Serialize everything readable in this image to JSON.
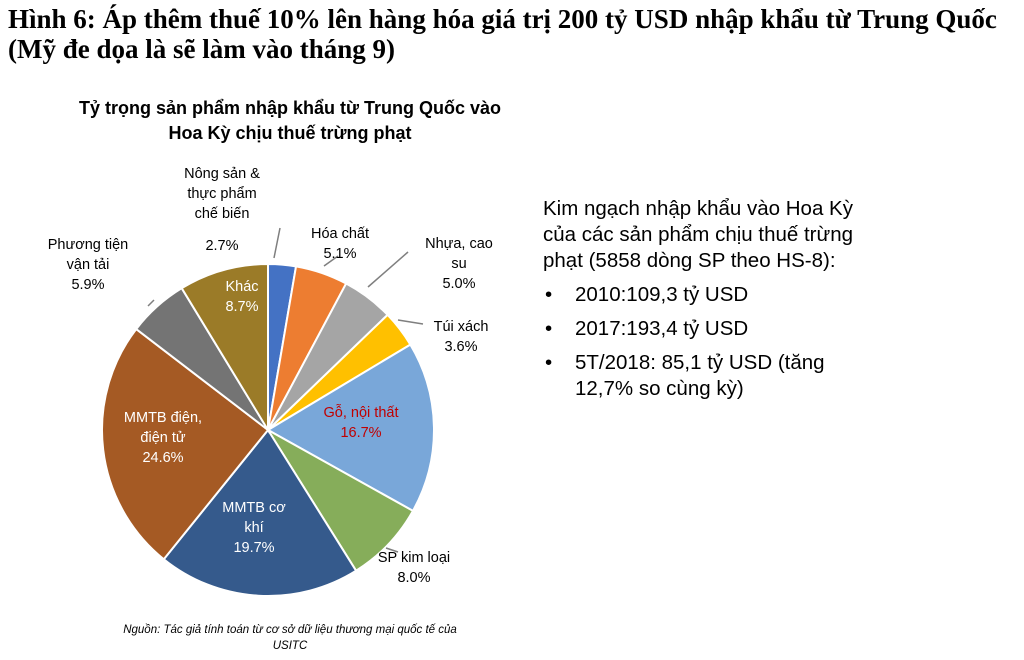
{
  "figure": {
    "title": "Hình 6: Áp thêm thuế 10% lên hàng hóa giá trị 200 tỷ USD nhập khẩu từ Trung Quốc (Mỹ đe dọa là sẽ làm vào tháng 9)"
  },
  "chart_data": {
    "type": "pie",
    "title": "Tỷ trọng sản phẩm nhập khẩu từ Trung Quốc vào Hoa Kỳ chịu thuế trừng phạt",
    "slices": [
      {
        "name": "Nông sản & thực phẩm chế biến",
        "label_lines": [
          "Nông sản &",
          "thực phẩm",
          "chế biến",
          "2.7%"
        ],
        "value": 2.7,
        "color": "#4472c4"
      },
      {
        "name": "Hóa chất",
        "label_lines": [
          "Hóa chất",
          "5.1%"
        ],
        "value": 5.1,
        "color": "#ed7d31"
      },
      {
        "name": "Nhựa, cao su",
        "label_lines": [
          "Nhựa, cao",
          "su",
          "5.0%"
        ],
        "value": 5.0,
        "color": "#a5a5a5"
      },
      {
        "name": "Túi xách",
        "label_lines": [
          "Túi xách",
          "3.6%"
        ],
        "value": 3.6,
        "color": "#ffc000"
      },
      {
        "name": "Gỗ, nội thất",
        "label_lines": [
          "Gỗ, nội thất",
          "16.7%"
        ],
        "value": 16.7,
        "color": "#79a7d9"
      },
      {
        "name": "SP kim loại",
        "label_lines": [
          "SP kim loại",
          "8.0%"
        ],
        "value": 8.0,
        "color": "#86ad5a"
      },
      {
        "name": "MMTB cơ khí",
        "label_lines": [
          "MMTB cơ",
          "khí",
          "19.7%"
        ],
        "value": 19.7,
        "color": "#355a8c"
      },
      {
        "name": "MMTB điện, điện tử",
        "label_lines": [
          "MMTB điện,",
          "điện tử",
          "24.6%"
        ],
        "value": 24.6,
        "color": "#a55a24"
      },
      {
        "name": "Phương tiện vận tải",
        "label_lines": [
          "Phương tiện",
          "vận tải",
          "5.9%"
        ],
        "value": 5.9,
        "color": "#747474"
      },
      {
        "name": "Khác",
        "label_lines": [
          "Khác",
          "8.7%"
        ],
        "value": 8.7,
        "color": "#9b7b28"
      }
    ],
    "legend": "none"
  },
  "info": {
    "heading": "Kim ngạch nhập khẩu vào Hoa Kỳ của các sản phẩm chịu thuế trừng phạt (5858 dòng SP theo HS-8):",
    "bullets": [
      "2010:109,3 tỷ USD",
      "2017:193,4 tỷ USD",
      "5T/2018: 85,1 tỷ USD (tăng 12,7% so cùng kỳ)"
    ],
    "bullet_symbol": "•"
  },
  "source": "Nguồn: Tác giả tính toán từ cơ sở dữ liệu thương mại quốc tế của USITC"
}
